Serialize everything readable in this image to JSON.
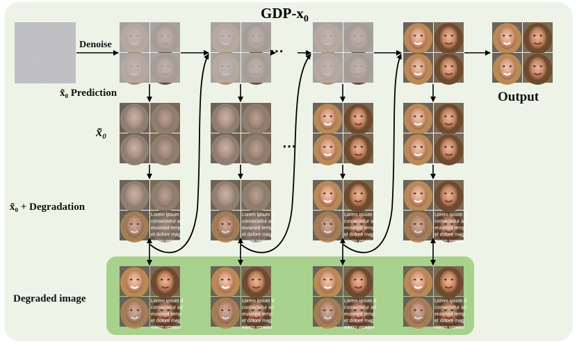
{
  "title": {
    "main": "GDP-x",
    "subscript": "0"
  },
  "labels": {
    "denoise": "Denoise",
    "x0_prediction": "x̃₀ Prediction",
    "x0": "x̃₀",
    "x0_degradation": "x̃₀ + Degradation",
    "degraded_image": "Degraded image",
    "output": "Output"
  },
  "ellipsis": "⋯",
  "lorem_lines": [
    "Lorem ipsum d",
    "consectetur ad",
    "eiusmod temp",
    "et dolore mag",
    "minim veniam"
  ],
  "colors": {
    "background_panel": "#eef3e7",
    "degraded_panel": "#a9d18e",
    "arrow": "#000000",
    "noise": "#8c8a90"
  }
}
